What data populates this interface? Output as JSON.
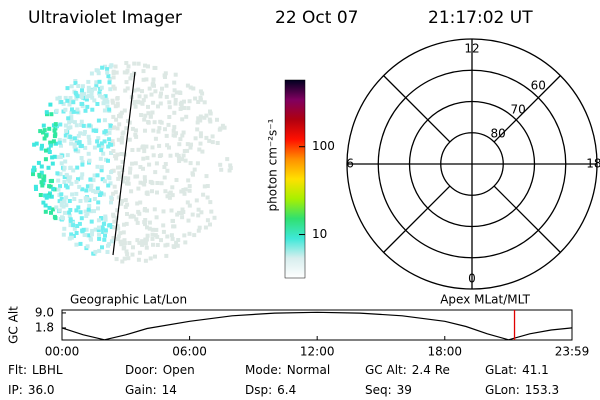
{
  "header": {
    "title": "Ultraviolet Imager",
    "date": "22 Oct 07",
    "time": "21:17:02 UT"
  },
  "colorbar": {
    "label": "photon cm⁻²s⁻¹",
    "log": true,
    "lim": [
      3.2,
      575
    ],
    "ticks": [
      10,
      100
    ],
    "colors": [
      "#ffffff",
      "#d8eeee",
      "#3ee8d8",
      "#30e070",
      "#a8f000",
      "#ffe000",
      "#ff9000",
      "#ff1000",
      "#b00010",
      "#800060",
      "#000020"
    ]
  },
  "polar": {
    "rlim": [
      90,
      50
    ],
    "rings": [
      60,
      70,
      80
    ],
    "mlt": [
      12,
      18,
      6,
      0
    ]
  },
  "timeline": {
    "type": "line",
    "left_label": "Geographic Lat/Lon",
    "right_label": "Apex MLat/MLT",
    "ylabel": "GC Alt",
    "xlim": [
      0,
      23.983
    ],
    "ylim": [
      -4,
      10.4
    ],
    "xticks": [
      {
        "value": 0,
        "label": "00:00"
      },
      {
        "value": 6,
        "label": "06:00"
      },
      {
        "value": 12,
        "label": "12:00"
      },
      {
        "value": 18,
        "label": "18:00"
      },
      {
        "value": 23.983,
        "label": "23:59"
      }
    ],
    "yticks": [
      {
        "value": 9,
        "label": "9.0"
      },
      {
        "value": 1.8,
        "label": "1.8"
      }
    ],
    "x": [
      0,
      1,
      2,
      3,
      4,
      6,
      8,
      10,
      12,
      14,
      16,
      18,
      19,
      20,
      21,
      22,
      23,
      23.983
    ],
    "values": [
      1.8,
      -1.5,
      -3.9,
      -1.5,
      1.5,
      5,
      7.6,
      8.9,
      9.3,
      8.9,
      7.6,
      5,
      2.5,
      -1.0,
      -3.9,
      -1.0,
      0.8,
      1.8
    ],
    "color": "#000000",
    "current_time": 21.28,
    "current_color": "#e00000"
  },
  "info": [
    [
      {
        "label": "Flt:",
        "value": "LBHL"
      },
      {
        "label": "Door:",
        "value": "Open"
      },
      {
        "label": "Mode:",
        "value": "Normal"
      },
      {
        "label": "GC Alt:",
        "value": "2.4 Re"
      },
      {
        "label": "GLat:",
        "value": "41.1"
      }
    ],
    [
      {
        "label": "IP:",
        "value": "36.0"
      },
      {
        "label": "Gain:",
        "value": "14"
      },
      {
        "label": "Dsp:",
        "value": "6.4"
      },
      {
        "label": "Seq:",
        "value": "39"
      },
      {
        "label": "GLon:",
        "value": "153.3"
      }
    ]
  ]
}
